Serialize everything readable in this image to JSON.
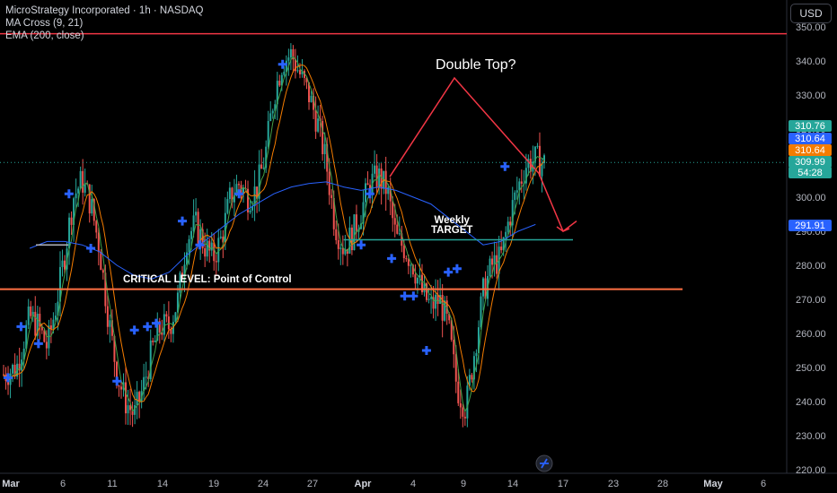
{
  "legend": {
    "title": "MicroStrategy Incorporated · 1h · NASDAQ",
    "indicator1": "MA Cross (9, 21)",
    "indicator2": "EMA (200, close)"
  },
  "currency_label": "USD",
  "annotations": {
    "double_top": "Double Top?",
    "weekly_target_line1": "Weekly",
    "weekly_target_line2": "TARGET",
    "critical_level": "CRITICAL LEVEL: Point of Control"
  },
  "price_labels": [
    {
      "value": "310.76",
      "color": "#26a69a"
    },
    {
      "value": "310.64",
      "color": "#2962ff"
    },
    {
      "value": "310.64",
      "color": "#f57c00"
    },
    {
      "value": "309.99",
      "color": "#26a69a"
    },
    {
      "value": "54:28",
      "color": "#26a69a"
    },
    {
      "value": "291.91",
      "color": "#2962ff"
    }
  ],
  "colors": {
    "up": "#26a69a",
    "down": "#ef5350",
    "ema": "#2962ff",
    "ma_fast": "#43a047",
    "ma_slow": "#f57c00",
    "cross": "#2962ff",
    "resistance": "#f23645",
    "critical": "#ff7043",
    "target": "#26a69a",
    "pattern": "#f23645"
  },
  "chart_data": {
    "type": "candlestick",
    "title": "MicroStrategy Incorporated · 1h · NASDAQ",
    "ylim": [
      218,
      352
    ],
    "y_ticks": [
      "350.00",
      "340.00",
      "330.00",
      "320.00",
      "310.00",
      "300.00",
      "290.00",
      "280.00",
      "270.00",
      "260.00",
      "250.00",
      "240.00",
      "230.00",
      "220.00"
    ],
    "x_ticks": [
      {
        "label": "Mar",
        "bold": true
      },
      {
        "label": "6",
        "bold": false
      },
      {
        "label": "11",
        "bold": false
      },
      {
        "label": "14",
        "bold": false
      },
      {
        "label": "19",
        "bold": false
      },
      {
        "label": "24",
        "bold": false
      },
      {
        "label": "27",
        "bold": false
      },
      {
        "label": "Apr",
        "bold": true
      },
      {
        "label": "4",
        "bold": false
      },
      {
        "label": "9",
        "bold": false
      },
      {
        "label": "14",
        "bold": false
      },
      {
        "label": "17",
        "bold": false
      },
      {
        "label": "23",
        "bold": false
      },
      {
        "label": "28",
        "bold": false
      },
      {
        "label": "May",
        "bold": true
      },
      {
        "label": "6",
        "bold": false
      }
    ],
    "price_path": [
      [
        0,
        248
      ],
      [
        3,
        250
      ],
      [
        6,
        265
      ],
      [
        8,
        262
      ],
      [
        10,
        256
      ],
      [
        12,
        268
      ],
      [
        14,
        283
      ],
      [
        16,
        300
      ],
      [
        18,
        305
      ],
      [
        20,
        298
      ],
      [
        22,
        285
      ],
      [
        24,
        265
      ],
      [
        26,
        248
      ],
      [
        28,
        240
      ],
      [
        30,
        236
      ],
      [
        32,
        244
      ],
      [
        34,
        255
      ],
      [
        36,
        262
      ],
      [
        38,
        262
      ],
      [
        40,
        270
      ],
      [
        42,
        288
      ],
      [
        44,
        292
      ],
      [
        46,
        286
      ],
      [
        48,
        282
      ],
      [
        50,
        288
      ],
      [
        52,
        300
      ],
      [
        54,
        304
      ],
      [
        56,
        300
      ],
      [
        58,
        302
      ],
      [
        60,
        312
      ],
      [
        62,
        330
      ],
      [
        64,
        340
      ],
      [
        66,
        342
      ],
      [
        68,
        336
      ],
      [
        70,
        330
      ],
      [
        72,
        322
      ],
      [
        74,
        310
      ],
      [
        76,
        292
      ],
      [
        78,
        285
      ],
      [
        80,
        289
      ],
      [
        82,
        296
      ],
      [
        84,
        304
      ],
      [
        86,
        306
      ],
      [
        88,
        302
      ],
      [
        90,
        288
      ],
      [
        92,
        285
      ],
      [
        94,
        280
      ],
      [
        96,
        272
      ],
      [
        98,
        268
      ],
      [
        100,
        270
      ],
      [
        102,
        262
      ],
      [
        104,
        244
      ],
      [
        106,
        238
      ],
      [
        108,
        255
      ],
      [
        110,
        272
      ],
      [
        112,
        280
      ],
      [
        114,
        282
      ],
      [
        116,
        294
      ],
      [
        118,
        303
      ],
      [
        120,
        310
      ],
      [
        122,
        311
      ],
      [
        124,
        310
      ]
    ],
    "ema200": [
      [
        6,
        285
      ],
      [
        10,
        287
      ],
      [
        14,
        287
      ],
      [
        18,
        286
      ],
      [
        22,
        284
      ],
      [
        26,
        280
      ],
      [
        30,
        277
      ],
      [
        34,
        276
      ],
      [
        38,
        278
      ],
      [
        42,
        283
      ],
      [
        46,
        287
      ],
      [
        50,
        291
      ],
      [
        54,
        295
      ],
      [
        58,
        298
      ],
      [
        62,
        301
      ],
      [
        66,
        303
      ],
      [
        70,
        304
      ],
      [
        74,
        304.5
      ],
      [
        78,
        303
      ],
      [
        82,
        302
      ],
      [
        86,
        303
      ],
      [
        90,
        302
      ],
      [
        94,
        300
      ],
      [
        98,
        298
      ],
      [
        102,
        294
      ],
      [
        106,
        290
      ],
      [
        110,
        286
      ],
      [
        114,
        287
      ],
      [
        118,
        290
      ],
      [
        122,
        292
      ]
    ],
    "cross_markers": [
      [
        1,
        247
      ],
      [
        4,
        262
      ],
      [
        8,
        257
      ],
      [
        15,
        301
      ],
      [
        20,
        285
      ],
      [
        26,
        246
      ],
      [
        30,
        261
      ],
      [
        33,
        262
      ],
      [
        35,
        263
      ],
      [
        41,
        293
      ],
      [
        45,
        286
      ],
      [
        54,
        301
      ],
      [
        64,
        339
      ],
      [
        82,
        286
      ],
      [
        84,
        301
      ],
      [
        89,
        282
      ],
      [
        92,
        271
      ],
      [
        94,
        271
      ],
      [
        97,
        255
      ],
      [
        102,
        278
      ],
      [
        104,
        279
      ],
      [
        115,
        309
      ]
    ],
    "resistance": 348,
    "critical_level": 273,
    "weekly_target": 287.5,
    "double_top_pattern": [
      [
        82,
        306
      ],
      [
        96,
        335
      ],
      [
        112,
        307
      ],
      [
        118,
        290
      ],
      [
        122,
        293
      ]
    ]
  }
}
